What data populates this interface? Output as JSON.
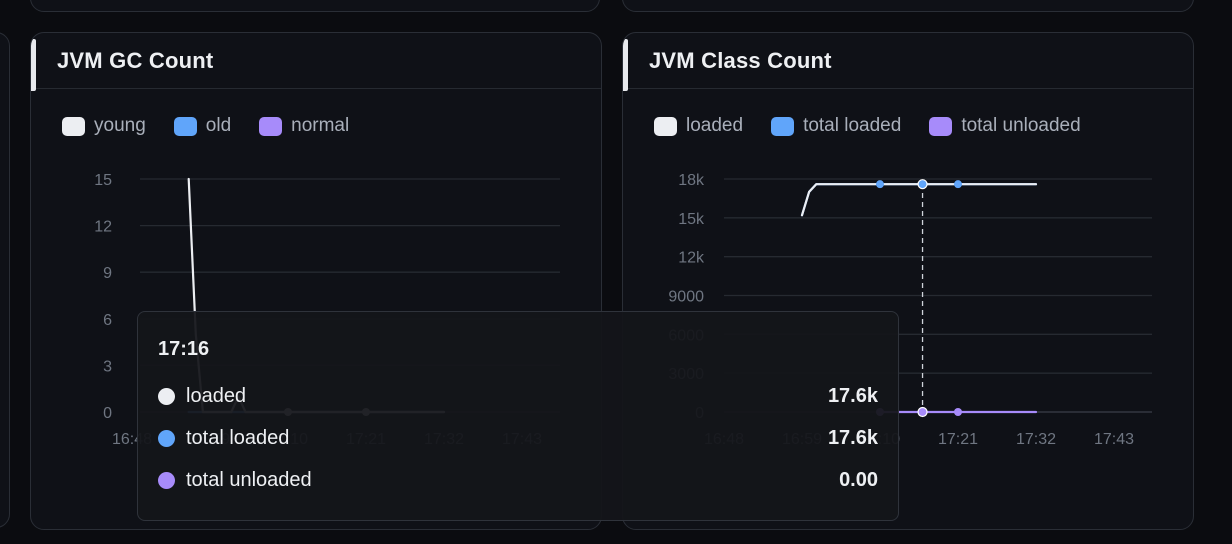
{
  "colors": {
    "young": "#eceef2",
    "old": "#60a5fa",
    "normal": "#a78bfa"
  },
  "gc_panel": {
    "title": "JVM GC Count",
    "legend": [
      {
        "label": "young",
        "color": "#eceef2"
      },
      {
        "label": "old",
        "color": "#60a5fa"
      },
      {
        "label": "normal",
        "color": "#a78bfa"
      }
    ]
  },
  "class_panel": {
    "title": "JVM Class Count",
    "legend": [
      {
        "label": "loaded",
        "color": "#eceef2"
      },
      {
        "label": "total loaded",
        "color": "#60a5fa"
      },
      {
        "label": "total unloaded",
        "color": "#a78bfa"
      }
    ]
  },
  "tooltip": {
    "time": "17:16",
    "rows": [
      {
        "label": "loaded",
        "value": "17.6k",
        "color": "#eceef2"
      },
      {
        "label": "total loaded",
        "value": "17.6k",
        "color": "#60a5fa"
      },
      {
        "label": "total unloaded",
        "value": "0.00",
        "color": "#a78bfa"
      }
    ]
  },
  "chart_data": [
    {
      "type": "line",
      "title": "JVM GC Count",
      "x_ticks": [
        "16:48",
        "16:59",
        "17:10",
        "17:21",
        "17:32",
        "17:43"
      ],
      "y_ticks": [
        "0",
        "3",
        "6",
        "9",
        "12",
        "15"
      ],
      "ylim": [
        0,
        15
      ],
      "xlim_minutes": [
        "16:48",
        "17:51"
      ],
      "series": [
        {
          "name": "young",
          "x": [
            "16:56",
            "16:57",
            "16:58",
            "17:02",
            "17:03",
            "17:04",
            "17:10",
            "17:21",
            "17:32"
          ],
          "y": [
            15,
            5,
            0,
            0,
            1,
            0,
            0,
            0,
            0
          ]
        },
        {
          "name": "old",
          "x": [
            "16:56",
            "17:32"
          ],
          "y": [
            0,
            0
          ]
        },
        {
          "name": "normal",
          "x": [
            "16:56",
            "17:32"
          ],
          "y": [
            0,
            0
          ]
        }
      ],
      "grid": true,
      "legend_position": "top-left"
    },
    {
      "type": "line",
      "title": "JVM Class Count",
      "x_ticks": [
        "16:48",
        "16:59",
        "17:10",
        "17:21",
        "17:32",
        "17:43"
      ],
      "y_ticks": [
        "0",
        "3000",
        "6000",
        "9000",
        "12k",
        "15k",
        "18k"
      ],
      "ylim": [
        0,
        18000
      ],
      "series": [
        {
          "name": "loaded",
          "x": [
            "16:59",
            "17:00",
            "17:01",
            "17:10",
            "17:16",
            "17:21",
            "17:32"
          ],
          "y": [
            15200,
            17000,
            17600,
            17600,
            17600,
            17600,
            17600
          ]
        },
        {
          "name": "total loaded",
          "x": [
            "16:59",
            "17:00",
            "17:01",
            "17:10",
            "17:16",
            "17:21",
            "17:32"
          ],
          "y": [
            15200,
            17000,
            17600,
            17600,
            17600,
            17600,
            17600
          ]
        },
        {
          "name": "total unloaded",
          "x": [
            "17:10",
            "17:16",
            "17:21",
            "17:32"
          ],
          "y": [
            0,
            0,
            0,
            0
          ]
        }
      ],
      "markers_at": [
        "17:10",
        "17:16",
        "17:21"
      ],
      "hover_x": "17:16",
      "grid": true,
      "legend_position": "top-left"
    }
  ]
}
